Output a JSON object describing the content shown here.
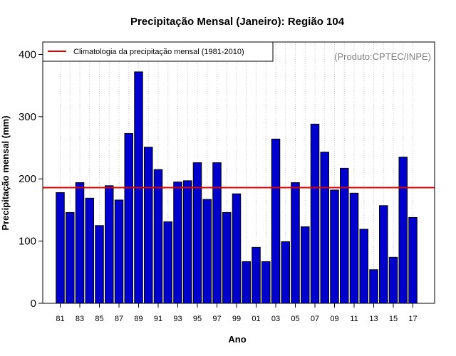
{
  "chart_data": {
    "type": "bar",
    "title": "Precipitação Mensal (Janeiro): Região 104",
    "xlabel": "Ano",
    "ylabel": "Precipitação mensal (mm)",
    "ylim": [
      0,
      420
    ],
    "yticks": [
      0,
      100,
      200,
      300,
      400
    ],
    "grid": "vertical dotted lines at each year",
    "years": [
      1981,
      1982,
      1983,
      1984,
      1985,
      1986,
      1987,
      1988,
      1989,
      1990,
      1991,
      1992,
      1993,
      1994,
      1995,
      1996,
      1997,
      1998,
      1999,
      2000,
      2001,
      2002,
      2003,
      2004,
      2005,
      2006,
      2007,
      2008,
      2009,
      2010,
      2011,
      2012,
      2013,
      2014,
      2015,
      2016,
      2017
    ],
    "xtick_labels": [
      "81",
      "83",
      "85",
      "87",
      "89",
      "91",
      "93",
      "95",
      "97",
      "99",
      "01",
      "03",
      "05",
      "07",
      "09",
      "11",
      "13",
      "15",
      "17"
    ],
    "values": [
      178,
      146,
      194,
      169,
      125,
      189,
      166,
      273,
      372,
      251,
      215,
      131,
      195,
      197,
      226,
      167,
      226,
      146,
      176,
      67,
      90,
      67,
      264,
      99,
      194,
      123,
      288,
      243,
      182,
      217,
      177,
      119,
      54,
      157,
      74,
      235,
      138
    ],
    "bar_color": "#0000cc",
    "climatology": {
      "label": "Climatologia da precipitação mensal (1981-2010)",
      "value": 186,
      "color": "#e00000"
    },
    "credit": "(Produto:CPTEC/INPE)",
    "legend_position": "top-left"
  }
}
